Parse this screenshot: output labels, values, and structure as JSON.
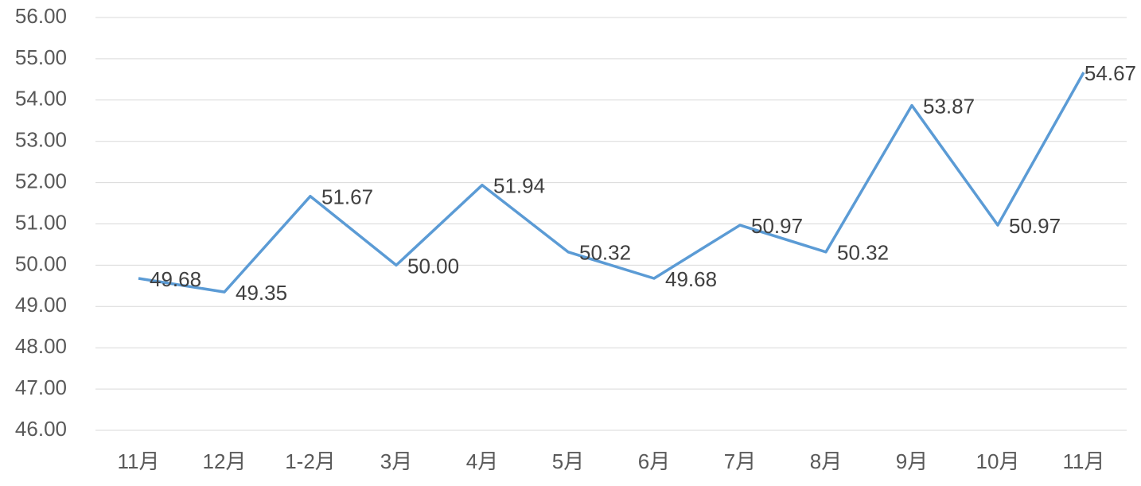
{
  "chart_data": {
    "type": "line",
    "categories": [
      "11月",
      "12月",
      "1-2月",
      "3月",
      "4月",
      "5月",
      "6月",
      "7月",
      "8月",
      "9月",
      "10月",
      "11月"
    ],
    "series": [
      {
        "color": "#5b9bd5",
        "values": [
          49.68,
          49.35,
          51.67,
          50.0,
          51.94,
          50.32,
          49.68,
          50.97,
          50.32,
          53.87,
          50.97,
          54.67
        ],
        "value_labels": [
          "49.68",
          "49.35",
          "51.67",
          "50.00",
          "51.94",
          "50.32",
          "49.68",
          "50.97",
          "50.32",
          "53.87",
          "50.97",
          "54.67"
        ]
      }
    ],
    "ylim": [
      46,
      56
    ],
    "yticks": [
      {
        "value": 46,
        "label": "46.00"
      },
      {
        "value": 47,
        "label": "47.00"
      },
      {
        "value": 48,
        "label": "48.00"
      },
      {
        "value": 49,
        "label": "49.00"
      },
      {
        "value": 50,
        "label": "50.00"
      },
      {
        "value": 51,
        "label": "51.00"
      },
      {
        "value": 52,
        "label": "52.00"
      },
      {
        "value": 53,
        "label": "53.00"
      },
      {
        "value": 54,
        "label": "54.00"
      },
      {
        "value": 55,
        "label": "55.00"
      },
      {
        "value": 56,
        "label": "56.00"
      }
    ],
    "grid": true
  }
}
